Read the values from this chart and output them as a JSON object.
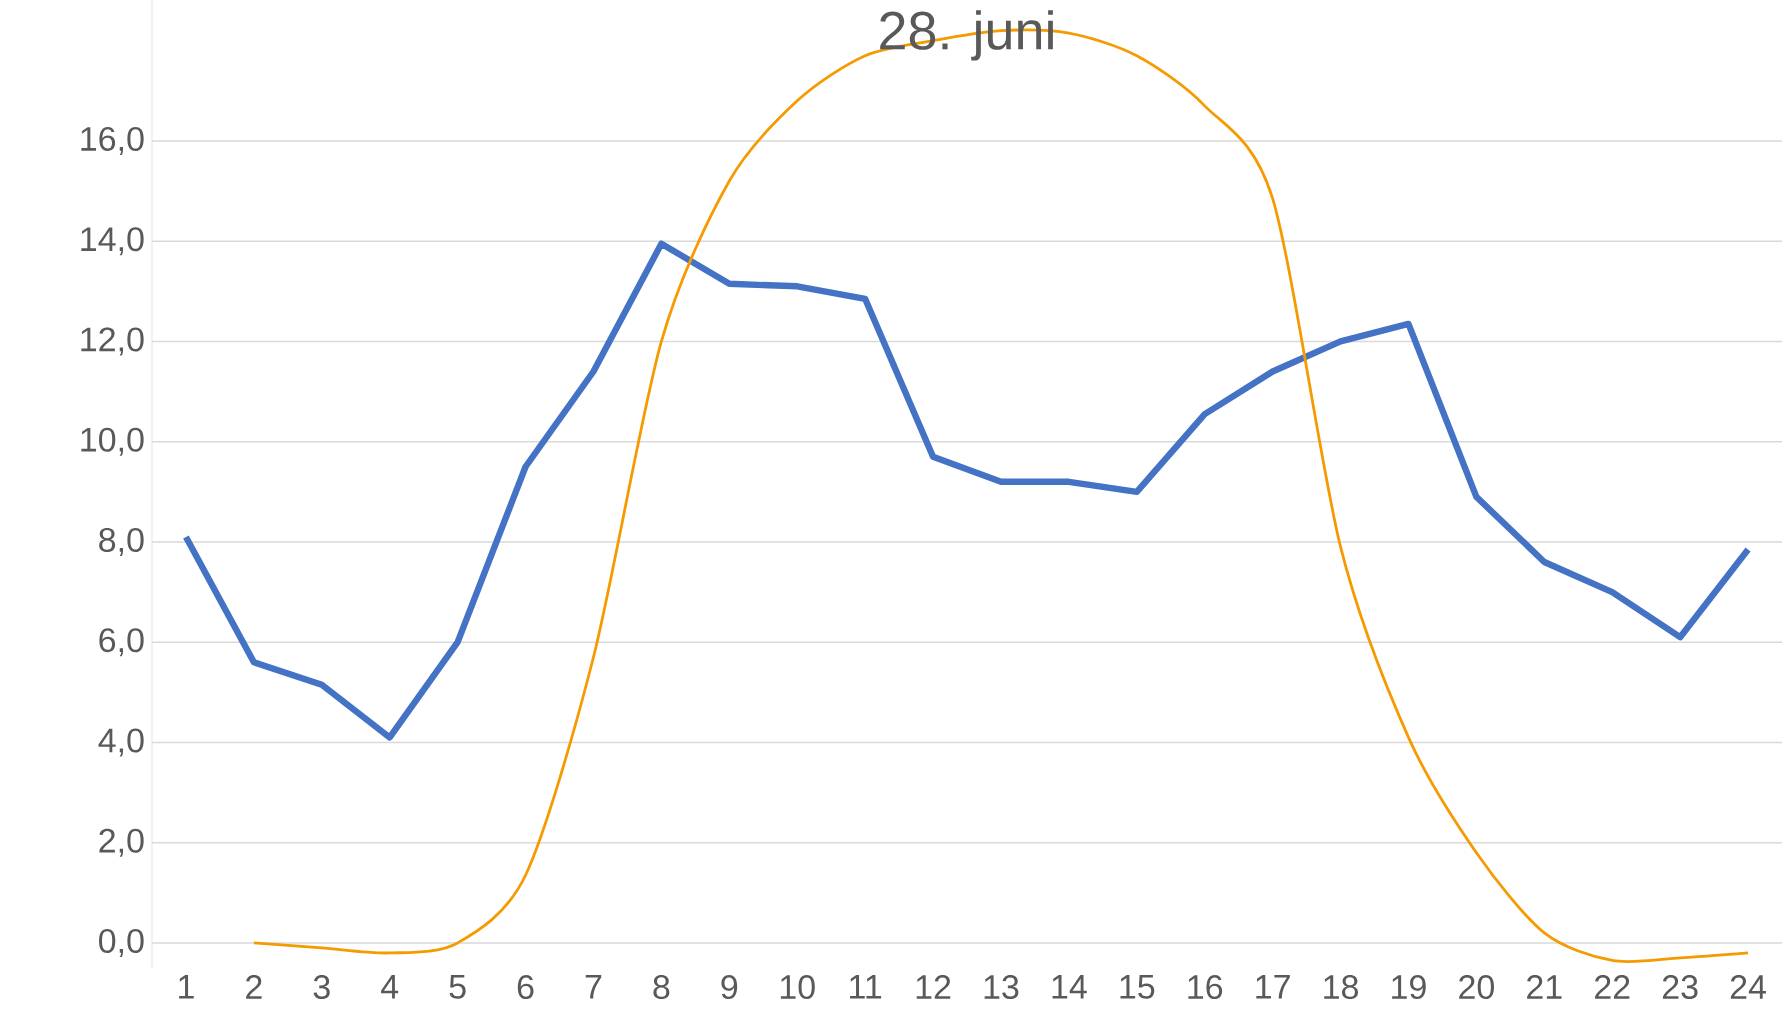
{
  "chart_data": {
    "type": "line",
    "title": "28. juni",
    "categories": [
      "1",
      "2",
      "3",
      "4",
      "5",
      "6",
      "7",
      "8",
      "9",
      "10",
      "11",
      "12",
      "13",
      "14",
      "15",
      "16",
      "17",
      "18",
      "19",
      "20",
      "21",
      "22",
      "23",
      "24"
    ],
    "series": [
      {
        "color": "#4472c4",
        "values": [
          8.1,
          5.6,
          5.15,
          4.1,
          6.0,
          9.5,
          11.4,
          13.95,
          13.15,
          13.1,
          12.85,
          9.7,
          9.2,
          9.2,
          9.0,
          10.55,
          11.4,
          12.0,
          12.35,
          8.9,
          7.6,
          7.0,
          6.1,
          7.85
        ]
      },
      {
        "color": "#f59a00",
        "values": [
          null,
          0.0,
          -0.1,
          -0.2,
          0.0,
          1.35,
          5.7,
          12.0,
          15.2,
          16.8,
          17.7,
          18.0,
          18.2,
          18.15,
          17.7,
          16.7,
          14.85,
          7.9,
          4.1,
          1.8,
          0.2,
          -0.35,
          -0.3,
          -0.2
        ]
      }
    ],
    "ylim": [
      -0.5,
      18.8
    ],
    "yticks": [
      {
        "value": 0,
        "label": "0,0"
      },
      {
        "value": 2,
        "label": "2,0"
      },
      {
        "value": 4,
        "label": "4,0"
      },
      {
        "value": 6,
        "label": "6,0"
      },
      {
        "value": 8,
        "label": "8,0"
      },
      {
        "value": 10,
        "label": "10,0"
      },
      {
        "value": 12,
        "label": "12,0"
      },
      {
        "value": 14,
        "label": "14,0"
      },
      {
        "value": 16,
        "label": "16,0"
      }
    ],
    "grid": "y"
  }
}
